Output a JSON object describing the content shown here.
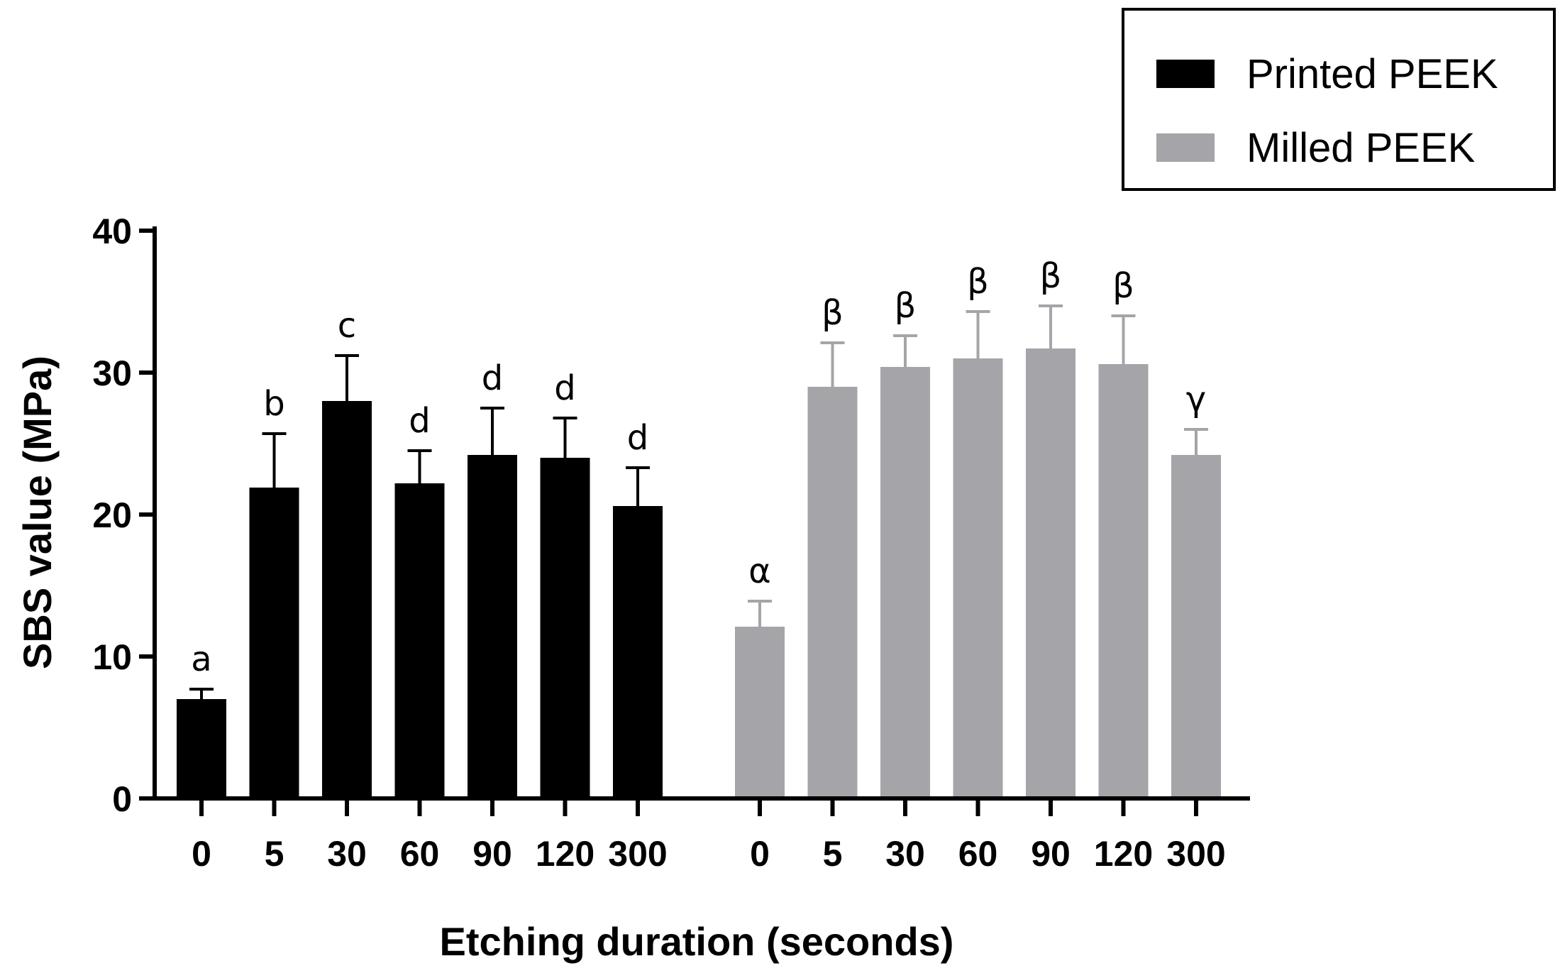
{
  "chart_data": {
    "type": "bar",
    "title": "",
    "xlabel": "Etching duration  (seconds)",
    "ylabel": "SBS value (MPa)",
    "ylim": [
      0,
      40
    ],
    "yticks": [
      0,
      10,
      20,
      30,
      40
    ],
    "legend": {
      "placement": "top-right"
    },
    "grid": false,
    "groups": [
      {
        "name": "Printed PEEK",
        "color": "#000000",
        "categories": [
          "0",
          "5",
          "30",
          "60",
          "90",
          "120",
          "300"
        ],
        "values": [
          7.0,
          21.9,
          28.0,
          22.2,
          24.2,
          24.0,
          20.6
        ],
        "errors": [
          0.7,
          3.8,
          3.2,
          2.3,
          3.3,
          2.8,
          2.7
        ],
        "labels": [
          "a",
          "b",
          "c",
          "d",
          "d",
          "d",
          "d"
        ]
      },
      {
        "name": "Milled PEEK",
        "color": "#a5a4a9",
        "categories": [
          "0",
          "5",
          "30",
          "60",
          "90",
          "120",
          "300"
        ],
        "values": [
          12.1,
          29.0,
          30.4,
          31.0,
          31.7,
          30.6,
          24.2
        ],
        "errors": [
          1.8,
          3.1,
          2.2,
          3.3,
          3.0,
          3.4,
          1.8
        ],
        "labels": [
          "α",
          "β",
          "β",
          "β",
          "β",
          "β",
          "γ"
        ]
      }
    ]
  }
}
